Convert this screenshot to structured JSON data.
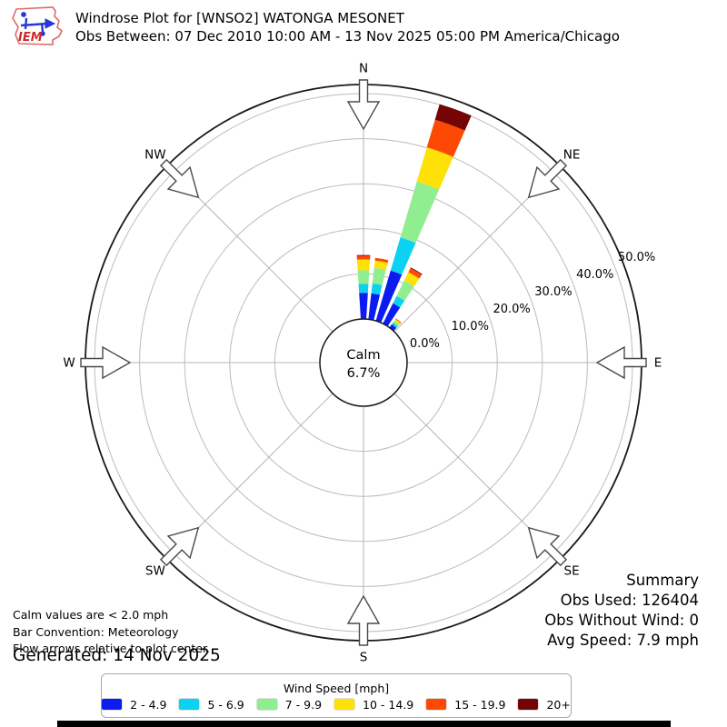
{
  "header": {
    "title": "Windrose Plot for [WNSO2] WATONGA MESONET",
    "subtitle": "Obs Between: 07 Dec 2010 10:00 AM - 13 Nov 2025 05:00 PM America/Chicago",
    "logo_text": "IEM"
  },
  "footer": {
    "notes": [
      "Calm values are < 2.0 mph",
      "Bar Convention: Meteorology",
      "Flow arrows relative to plot center."
    ],
    "generated": "Generated: 14 Nov 2025"
  },
  "summary": {
    "title": "Summary",
    "obs_used": "Obs Used: 126404",
    "obs_without_wind": "Obs Without Wind: 0",
    "avg_speed": "Avg Speed: 7.9 mph"
  },
  "legend": {
    "title": "Wind Speed [mph]",
    "items": [
      {
        "label": "2 - 4.9",
        "color": "#0c1cf0"
      },
      {
        "label": "5 - 6.9",
        "color": "#0cd2f2"
      },
      {
        "label": "7 - 9.9",
        "color": "#90ee90"
      },
      {
        "label": "10 - 14.9",
        "color": "#ffe10a"
      },
      {
        "label": "15 - 19.9",
        "color": "#fd4903"
      },
      {
        "label": "20+",
        "color": "#750505"
      }
    ]
  },
  "chart_data": {
    "type": "windrose",
    "units": "mph",
    "calm_label": "Calm",
    "calm_percent_label": "6.7%",
    "calm_percent": 6.7,
    "direction_labels": [
      "N",
      "NE",
      "E",
      "SE",
      "S",
      "SW",
      "W",
      "NW"
    ],
    "ring_percent_labels": [
      "0.0%",
      "10.0%",
      "20.0%",
      "30.0%",
      "40.0%",
      "50.0%"
    ],
    "rings_percent": [
      0,
      10,
      20,
      30,
      40,
      50
    ],
    "max_percent": 50,
    "bar_angular_width_deg": 7.2,
    "speed_bin_labels": [
      "2 - 4.9",
      "5 - 6.9",
      "7 - 9.9",
      "10 - 14.9",
      "15 - 19.9",
      "20+"
    ],
    "speed_bin_colors": [
      "#0c1cf0",
      "#0cd2f2",
      "#90ee90",
      "#ffe10a",
      "#fd4903",
      "#750505"
    ],
    "bars": [
      {
        "direction_deg": 0,
        "values": [
          5.8,
          2.0,
          3.0,
          2.4,
          0.8,
          0.2
        ]
      },
      {
        "direction_deg": 10,
        "values": [
          5.8,
          2.2,
          3.5,
          1.6,
          0.6,
          0.0
        ]
      },
      {
        "direction_deg": 20,
        "values": [
          11.6,
          7.7,
          12.9,
          7.9,
          6.4,
          3.6
        ]
      },
      {
        "direction_deg": 30,
        "values": [
          5.0,
          1.8,
          3.8,
          2.1,
          1.0,
          0.2
        ]
      },
      {
        "direction_deg": 40,
        "values": [
          0.9,
          0.5,
          0.5,
          0.4,
          0.2,
          0.0
        ]
      }
    ]
  }
}
